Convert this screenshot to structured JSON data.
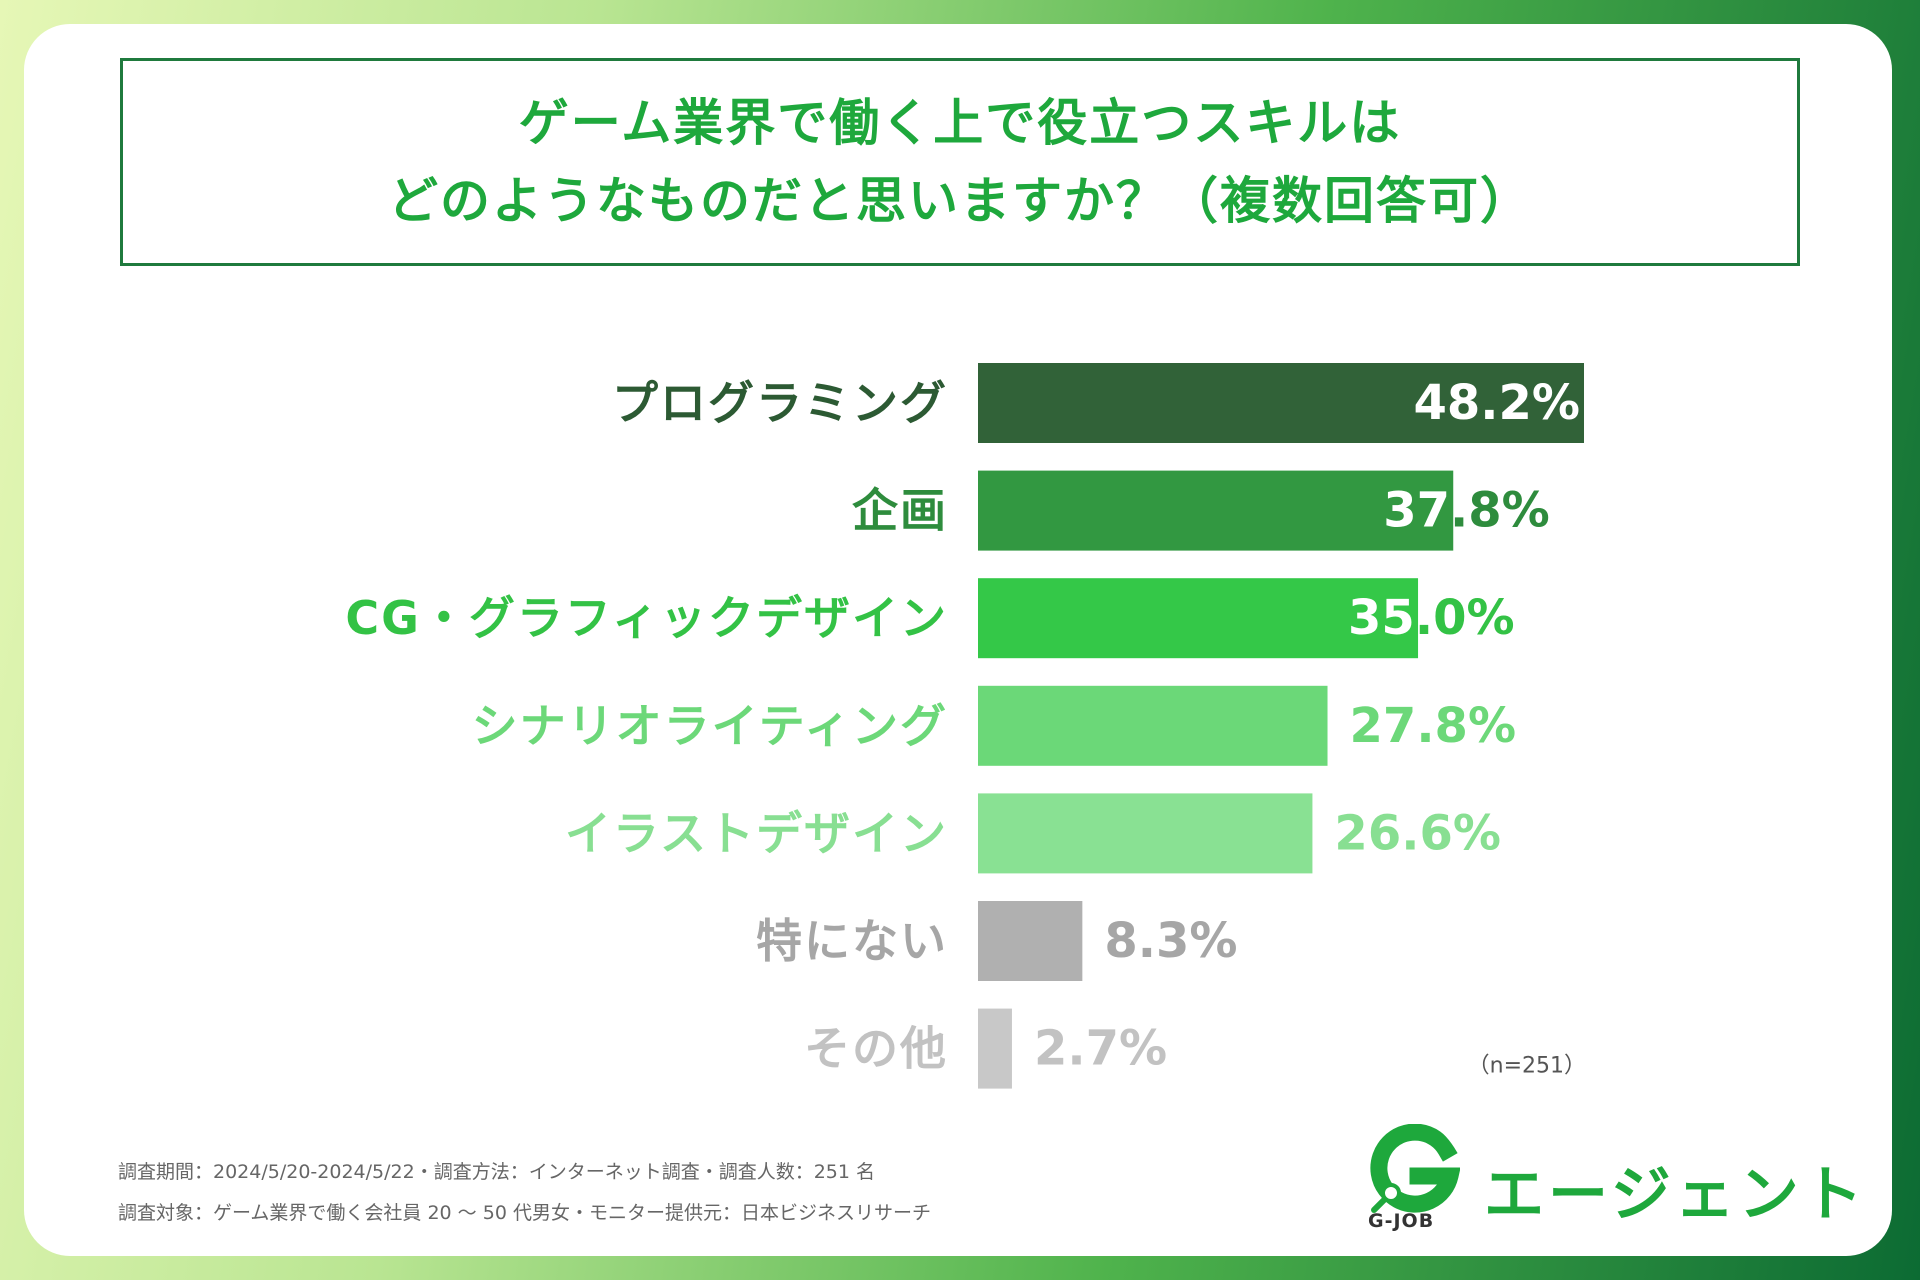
{
  "title": {
    "line1": "ゲーム業界で働く上で役立つスキルは",
    "line2": "どのようなものだと思いますか？（複数回答可）"
  },
  "chart_data": {
    "type": "bar",
    "orientation": "horizontal",
    "categories": [
      "プログラミング",
      "企画",
      "CG・グラフィックデザイン",
      "シナリオライティング",
      "イラストデザイン",
      "特にない",
      "その他"
    ],
    "values": [
      48.2,
      37.8,
      35.0,
      27.8,
      26.6,
      8.3,
      2.7
    ],
    "value_labels": [
      "48.2%",
      "37.8%",
      "35.0%",
      "27.8%",
      "26.6%",
      "8.3%",
      "2.7%"
    ],
    "colors": [
      "#316238",
      "#329841",
      "#34c848",
      "#6bd878",
      "#89e193",
      "#b0b0b0",
      "#c8c8c8"
    ],
    "label_colors": [
      "#2c5a33",
      "#2e8c3d",
      "#33c245",
      "#6cd879",
      "#88df92",
      "#a6a6a6",
      "#c2c2c2"
    ],
    "xlim": [
      0,
      48.2
    ],
    "sample_size": "（n=251）"
  },
  "footer": {
    "line1": "調査期間：2024/5/20-2024/5/22・調査方法：インターネット調査・調査人数：251 名",
    "line2": "調査対象：ゲーム業界で働く会社員 20 ～ 50 代男女・モニター提供元：日本ビジネスリサーチ"
  },
  "logo": {
    "letter": "G",
    "sub": "G-JOB",
    "text": "エージェント"
  }
}
